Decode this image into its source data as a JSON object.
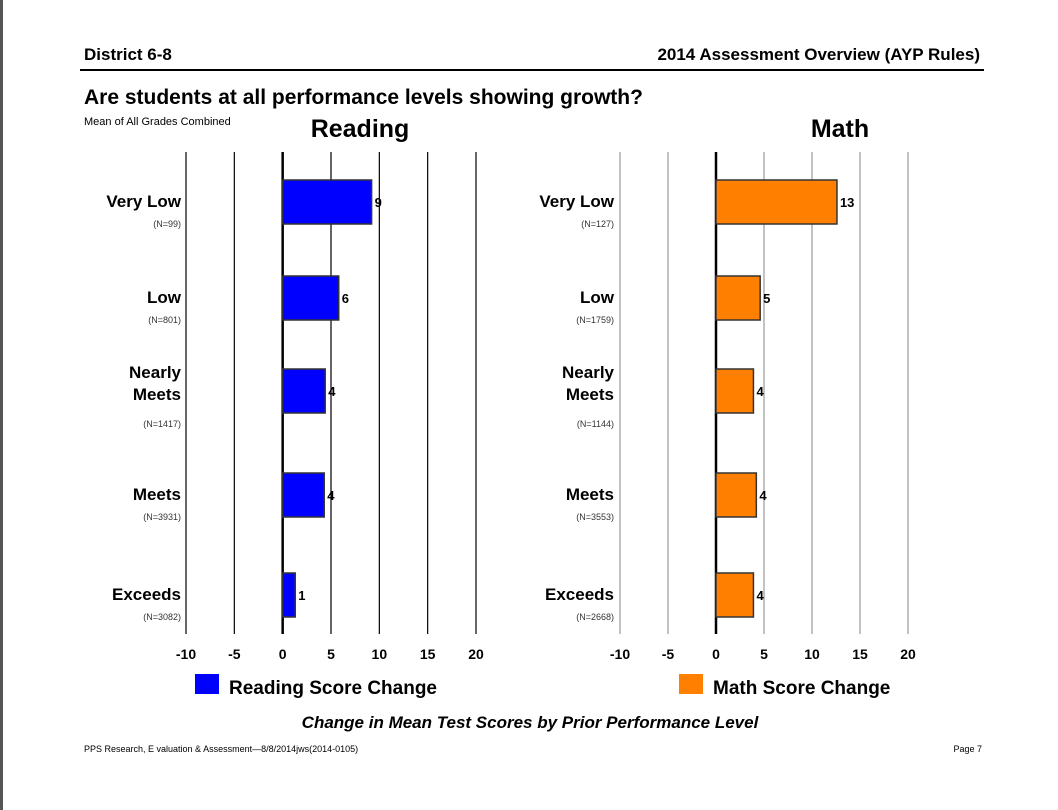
{
  "header": {
    "left": "District 6-8",
    "right": "2014 Assessment Overview (AYP Rules)"
  },
  "question": "Are students at all performance levels showing growth?",
  "subtitle": "Mean of All Grades Combined",
  "footer": {
    "left": "PPS Research, E valuation & Assessment—8/8/2014jws(2014-0105)",
    "right": "Page 7"
  },
  "chart_data": {
    "title": "Change in Mean Test Scores by Prior Performance Level",
    "charts": [
      {
        "type": "bar",
        "orientation": "horizontal",
        "title": "Reading",
        "legend": "Reading Score Change",
        "color": "#0000ff",
        "categories": [
          [
            "Very Low"
          ],
          [
            "Low"
          ],
          [
            "Nearly",
            "Meets"
          ],
          [
            "Meets"
          ],
          [
            "Exceeds"
          ]
        ],
        "n": [
          "(N=99)",
          "(N=801)",
          "(N=1417)",
          "(N=3931)",
          "(N=3082)"
        ],
        "values": [
          9.2,
          5.8,
          4.4,
          4.3,
          1.3
        ],
        "labels": [
          "9",
          "6",
          "4",
          "4",
          "1"
        ],
        "xlim": [
          -10,
          20
        ],
        "ticks": [
          -10,
          -5,
          0,
          5,
          10,
          15,
          20
        ],
        "grid_color": "#000000"
      },
      {
        "type": "bar",
        "orientation": "horizontal",
        "title": "Math",
        "legend": "Math Score Change",
        "color": "#ff8000",
        "categories": [
          [
            "Very Low"
          ],
          [
            "Low"
          ],
          [
            "Nearly",
            "Meets"
          ],
          [
            "Meets"
          ],
          [
            "Exceeds"
          ]
        ],
        "n": [
          "(N=127)",
          "(N=1759)",
          "(N=1144)",
          "(N=3553)",
          "(N=2668)"
        ],
        "values": [
          12.6,
          4.6,
          3.9,
          4.2,
          3.9
        ],
        "labels": [
          "13",
          "5",
          "4",
          "4",
          "4"
        ],
        "xlim": [
          -10,
          20
        ],
        "ticks": [
          -10,
          -5,
          0,
          5,
          10,
          15,
          20
        ],
        "grid_color": "#999999"
      }
    ]
  }
}
